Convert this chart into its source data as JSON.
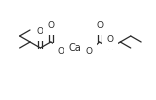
{
  "bg_color": "#ffffff",
  "line_color": "#2a2a2a",
  "text_color": "#2a2a2a",
  "lw": 0.9,
  "fontsize": 6.5,
  "figsize": [
    1.56,
    1.0
  ],
  "dpi": 100,
  "ca_label": "Ca",
  "o_label": "O"
}
